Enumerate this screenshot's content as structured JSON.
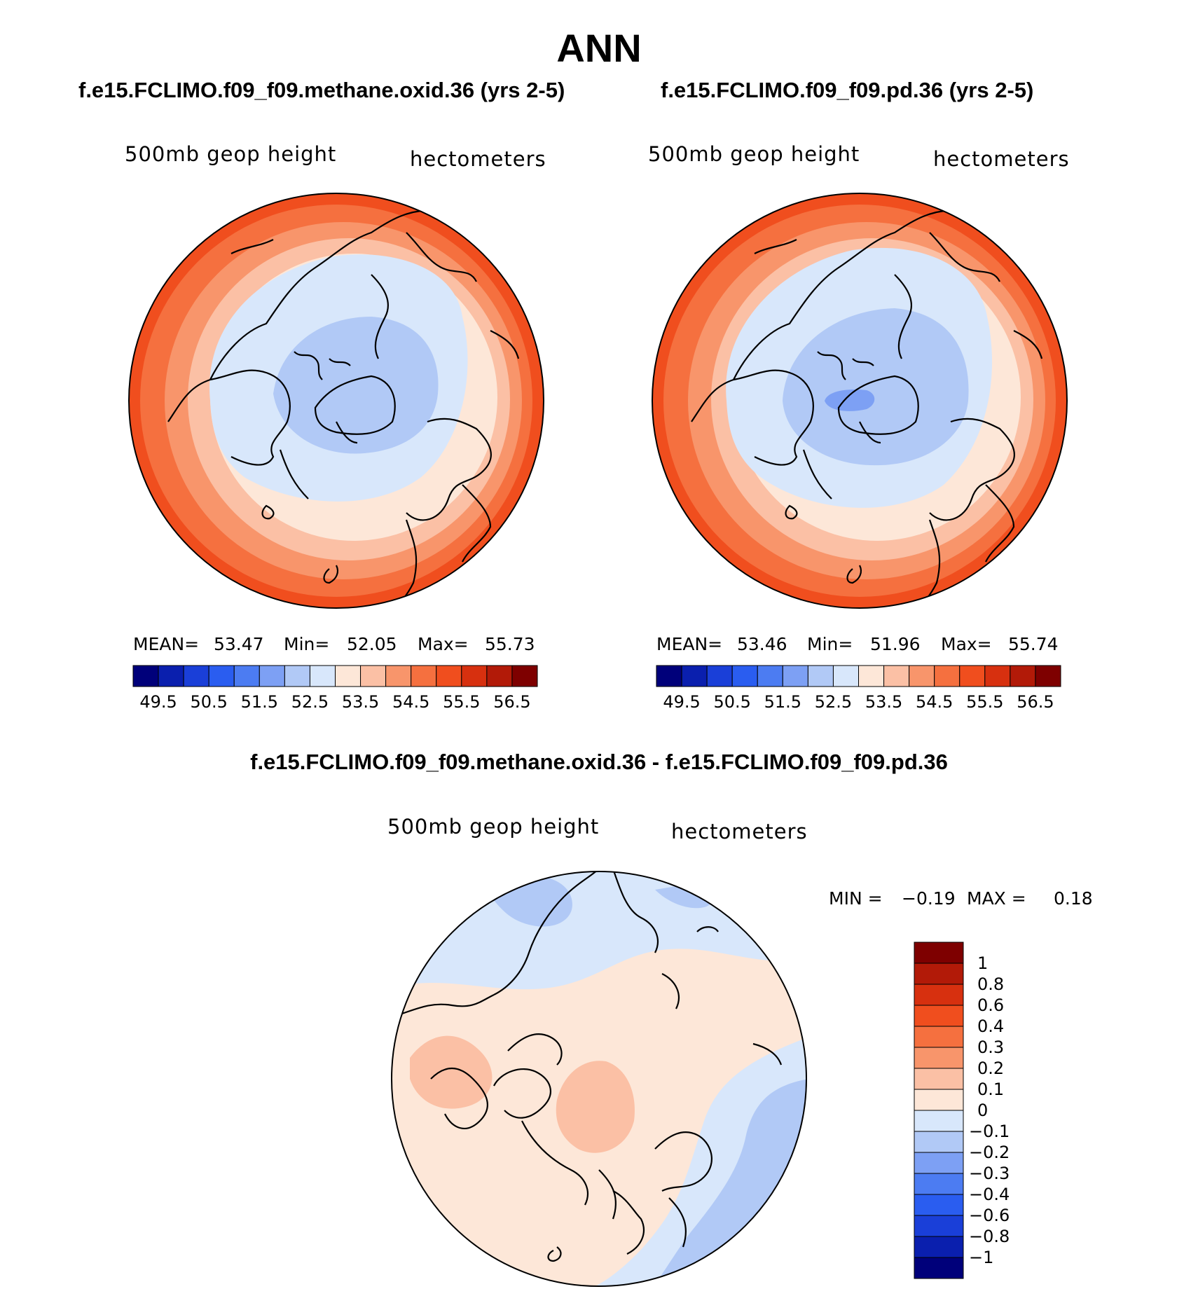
{
  "figure": {
    "title": "ANN"
  },
  "panels": [
    {
      "id": "left",
      "case_title": "f.e15.FCLIMO.f09_f09.methane.oxid.36 (yrs 2-5)",
      "variable": "500mb geop height",
      "units": "hectometers",
      "stats": {
        "mean_label": "MEAN=",
        "mean": "53.47",
        "min_label": "Min=",
        "min": "52.05",
        "max_label": "Max=",
        "max": "55.73"
      }
    },
    {
      "id": "right",
      "case_title": "f.e15.FCLIMO.f09_f09.pd.36 (yrs 2-5)",
      "variable": "500mb geop height",
      "units": "hectometers",
      "stats": {
        "mean_label": "MEAN=",
        "mean": "53.46",
        "min_label": "Min=",
        "min": "51.96",
        "max_label": "Max=",
        "max": "55.74"
      }
    }
  ],
  "difference": {
    "title": "f.e15.FCLIMO.f09_f09.methane.oxid.36 - f.e15.FCLIMO.f09_f09.pd.36",
    "variable": "500mb geop height",
    "units": "hectometers",
    "minmax": {
      "min_label": "MIN =",
      "min": "−0.19",
      "max_label": "MAX =",
      "max": "0.18"
    }
  },
  "colorbar_abs": {
    "colors": [
      "#00007a",
      "#0a1fae",
      "#1a3fd8",
      "#2a5df0",
      "#4c7cf2",
      "#7da0f4",
      "#b1c9f6",
      "#d8e7fb",
      "#fde7d8",
      "#fbc0a5",
      "#f8956b",
      "#f5703f",
      "#f04e1e",
      "#d7300f",
      "#b21a08",
      "#7e0000"
    ],
    "labels": [
      "49.5",
      "50.5",
      "51.5",
      "52.5",
      "53.5",
      "54.5",
      "55.5",
      "56.5"
    ]
  },
  "colorbar_diff": {
    "colors": [
      "#7e0000",
      "#b21a08",
      "#d7300f",
      "#f04e1e",
      "#f5703f",
      "#f8956b",
      "#fbc0a5",
      "#fde7d8",
      "#d8e7fb",
      "#b1c9f6",
      "#7da0f4",
      "#4c7cf2",
      "#2a5df0",
      "#1a3fd8",
      "#0a1fae",
      "#00007a"
    ],
    "labels": [
      "1",
      "0.8",
      "0.6",
      "0.4",
      "0.3",
      "0.2",
      "0.1",
      "0",
      "−0.1",
      "−0.2",
      "−0.3",
      "−0.4",
      "−0.6",
      "−0.8",
      "−1"
    ]
  },
  "map_fields": {
    "left": {
      "rings": [
        "#f04e1e",
        "#f5703f",
        "#f8956b",
        "#fbc0a5",
        "#fde7d8"
      ],
      "core": [
        "#d8e7fb",
        "#b1c9f6"
      ]
    },
    "right": {
      "rings": [
        "#f04e1e",
        "#f5703f",
        "#f8956b",
        "#fbc0a5",
        "#fde7d8"
      ],
      "core": [
        "#d8e7fb",
        "#b1c9f6",
        "#7da0f4"
      ]
    },
    "diff": {
      "base": "#fde7d8",
      "neg": [
        "#d8e7fb",
        "#b1c9f6"
      ],
      "pos": [
        "#fbc0a5"
      ]
    }
  }
}
